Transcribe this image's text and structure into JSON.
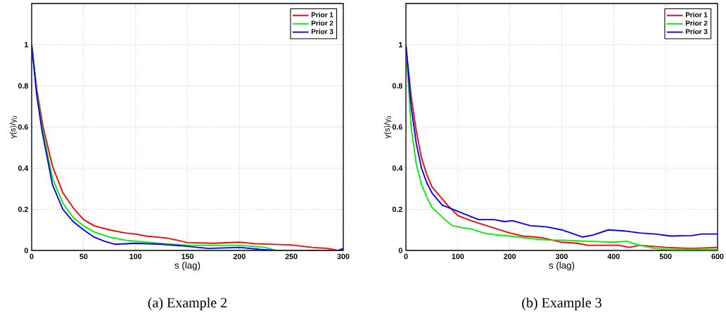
{
  "chart_data": [
    {
      "type": "line",
      "title": "(a) Example 2",
      "xlabel": "s (lag)",
      "ylabel": "γ(s)/γ$_{0}$",
      "xlim": [
        0,
        300
      ],
      "xticks": [
        0,
        50,
        100,
        150,
        200,
        250,
        300
      ],
      "ylim": [
        0,
        1.2
      ],
      "yticks": [
        0,
        0.2,
        0.4,
        0.6,
        0.8,
        1
      ],
      "grid": true,
      "legend": "top right",
      "series": [
        {
          "name": "Prior 1",
          "color": "#ff0000",
          "x": [
            0,
            5,
            11,
            20,
            30,
            41,
            50,
            60,
            75,
            90,
            100,
            110,
            130,
            140,
            150,
            175,
            200,
            215,
            250,
            270,
            285,
            295
          ],
          "values": [
            1,
            0.78,
            0.6,
            0.41,
            0.28,
            0.2,
            0.15,
            0.12,
            0.1,
            0.085,
            0.08,
            0.07,
            0.06,
            0.05,
            0.038,
            0.035,
            0.04,
            0.033,
            0.027,
            0.015,
            0.01,
            0
          ]
        },
        {
          "name": "Prior 2",
          "color": "#00ee00",
          "x": [
            0,
            5,
            10,
            20,
            30,
            40,
            50,
            60,
            75,
            90,
            110,
            130,
            150,
            175,
            200,
            225,
            235
          ],
          "values": [
            1,
            0.76,
            0.6,
            0.35,
            0.23,
            0.16,
            0.12,
            0.09,
            0.065,
            0.05,
            0.04,
            0.032,
            0.025,
            0.025,
            0.025,
            0.015,
            0
          ]
        },
        {
          "name": "Prior 3",
          "color": "#0000ff",
          "x": [
            0,
            5,
            10,
            20,
            30,
            40,
            50,
            60,
            70,
            80,
            100,
            125,
            150,
            170,
            200,
            220,
            235,
            295,
            300
          ],
          "values": [
            1,
            0.75,
            0.58,
            0.32,
            0.2,
            0.14,
            0.1,
            0.065,
            0.045,
            0.03,
            0.035,
            0.03,
            0.02,
            0.01,
            0.015,
            0.005,
            0,
            0,
            0.01
          ]
        }
      ]
    },
    {
      "type": "line",
      "title": "(b) Example 3",
      "xlabel": "s (lag)",
      "ylabel": "γ(s)/γ$_{0}$",
      "xlim": [
        0,
        600
      ],
      "xticks": [
        0,
        100,
        200,
        300,
        400,
        500,
        600
      ],
      "ylim": [
        0,
        1.2
      ],
      "yticks": [
        0,
        0.2,
        0.4,
        0.6,
        0.8,
        1
      ],
      "grid": true,
      "legend": "top right",
      "series": [
        {
          "name": "Prior 1",
          "color": "#ff0000",
          "x": [
            0,
            10,
            20,
            30,
            40,
            50,
            60,
            80,
            100,
            125,
            150,
            175,
            200,
            225,
            250,
            265,
            300,
            330,
            350,
            400,
            410,
            430,
            450,
            500,
            550,
            600
          ],
          "values": [
            1,
            0.75,
            0.58,
            0.45,
            0.37,
            0.31,
            0.28,
            0.22,
            0.17,
            0.145,
            0.125,
            0.105,
            0.085,
            0.07,
            0.065,
            0.06,
            0.04,
            0.035,
            0.025,
            0.025,
            0.025,
            0.015,
            0.025,
            0.015,
            0.01,
            0.015
          ]
        },
        {
          "name": "Prior 2",
          "color": "#00ee00",
          "x": [
            0,
            10,
            20,
            30,
            40,
            50,
            75,
            90,
            110,
            125,
            150,
            175,
            200,
            250,
            280,
            300,
            350,
            400,
            425,
            450,
            480,
            500,
            550,
            600
          ],
          "values": [
            1,
            0.6,
            0.42,
            0.32,
            0.26,
            0.21,
            0.15,
            0.12,
            0.11,
            0.105,
            0.085,
            0.075,
            0.07,
            0.055,
            0.05,
            0.05,
            0.045,
            0.04,
            0.045,
            0.025,
            0.01,
            0.005,
            0.005,
            0.005
          ]
        },
        {
          "name": "Prior 3",
          "color": "#0000ff",
          "x": [
            0,
            10,
            20,
            30,
            40,
            50,
            70,
            90,
            110,
            140,
            170,
            190,
            205,
            240,
            270,
            300,
            340,
            360,
            390,
            420,
            450,
            480,
            510,
            550,
            570,
            600
          ],
          "values": [
            1,
            0.7,
            0.52,
            0.4,
            0.33,
            0.28,
            0.22,
            0.2,
            0.18,
            0.15,
            0.15,
            0.14,
            0.145,
            0.12,
            0.115,
            0.1,
            0.065,
            0.075,
            0.1,
            0.095,
            0.085,
            0.08,
            0.07,
            0.072,
            0.08,
            0.08
          ]
        }
      ]
    }
  ]
}
